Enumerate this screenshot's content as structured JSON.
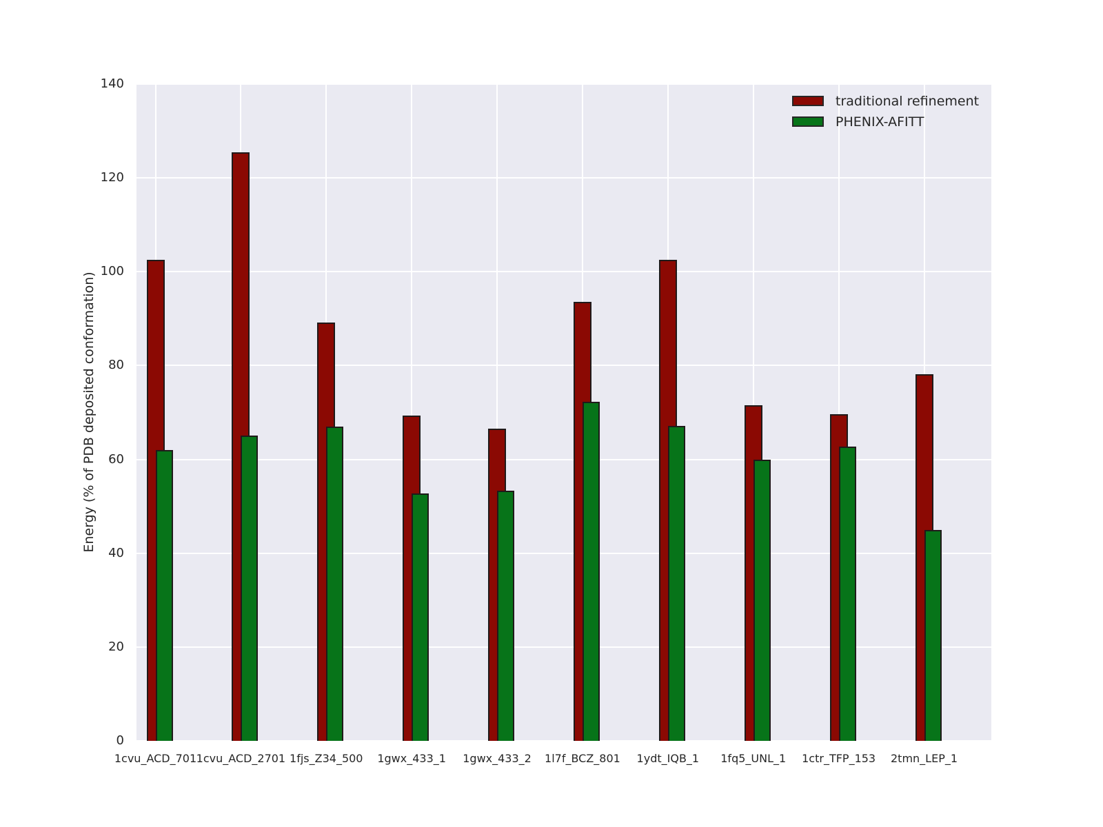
{
  "chart_data": {
    "type": "bar",
    "title": "",
    "xlabel": "",
    "ylabel": "Energy (% of PDB deposited conformation)",
    "ylim": [
      0,
      140
    ],
    "yticks": [
      0,
      20,
      40,
      60,
      80,
      100,
      120,
      140
    ],
    "grid": true,
    "legend_position": "upper right",
    "categories": [
      "1cvu_ACD_701",
      "1cvu_ACD_2701",
      "1fjs_Z34_500",
      "1gwx_433_1",
      "1gwx_433_2",
      "1l7f_BCZ_801",
      "1ydt_IQB_1",
      "1fq5_UNL_1",
      "1ctr_TFP_153",
      "2tmn_LEP_1"
    ],
    "series": [
      {
        "name": "traditional refinement",
        "color": "#8B0903",
        "values": [
          102.5,
          125.5,
          89.2,
          69.3,
          66.6,
          93.6,
          102.5,
          71.5,
          69.7,
          78.2
        ]
      },
      {
        "name": "PHENIX-AFITT",
        "color": "#077419",
        "values": [
          62.0,
          65.1,
          67.0,
          52.7,
          53.4,
          72.3,
          67.2,
          60.0,
          62.8,
          45.0
        ]
      }
    ],
    "colors": {
      "plot_background": "#EAEAF2",
      "figure_background": "#FFFFFF",
      "gridline": "#FFFFFF",
      "bar_edge": "#1F1A1A",
      "text": "#262626"
    }
  }
}
